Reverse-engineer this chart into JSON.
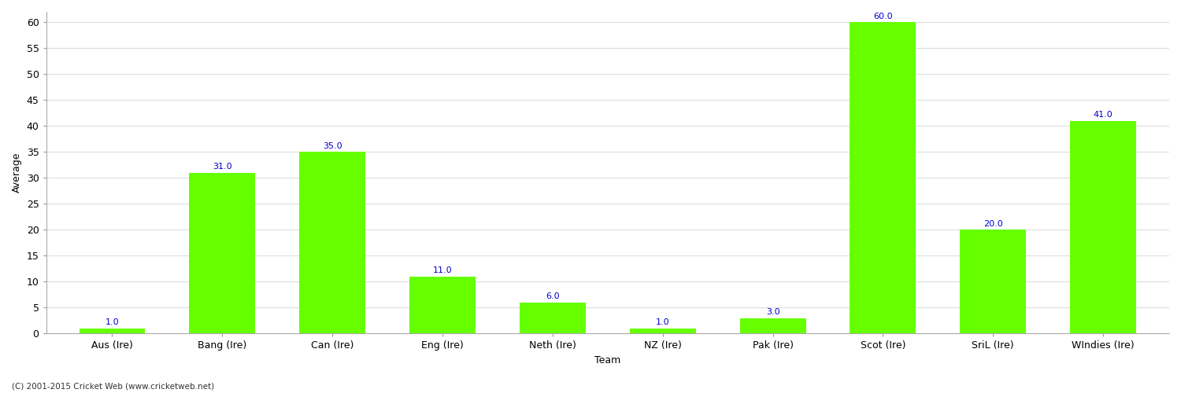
{
  "categories": [
    "Aus (Ire)",
    "Bang (Ire)",
    "Can (Ire)",
    "Eng (Ire)",
    "Neth (Ire)",
    "NZ (Ire)",
    "Pak (Ire)",
    "Scot (Ire)",
    "SriL (Ire)",
    "WIndies (Ire)"
  ],
  "values": [
    1.0,
    31.0,
    35.0,
    11.0,
    6.0,
    1.0,
    3.0,
    60.0,
    20.0,
    41.0
  ],
  "bar_color": "#66ff00",
  "bar_edge_color": "#66ff00",
  "label_color": "#0000cc",
  "xlabel": "Team",
  "ylabel": "Average",
  "ylim": [
    0,
    62
  ],
  "yticks": [
    0,
    5,
    10,
    15,
    20,
    25,
    30,
    35,
    40,
    45,
    50,
    55,
    60
  ],
  "grid_color": "#dddddd",
  "background_color": "#ffffff",
  "plot_bg_color": "#ffffff",
  "footer": "(C) 2001-2015 Cricket Web (www.cricketweb.net)",
  "label_fontsize": 8,
  "axis_label_fontsize": 9,
  "tick_fontsize": 9,
  "bar_width": 0.6
}
